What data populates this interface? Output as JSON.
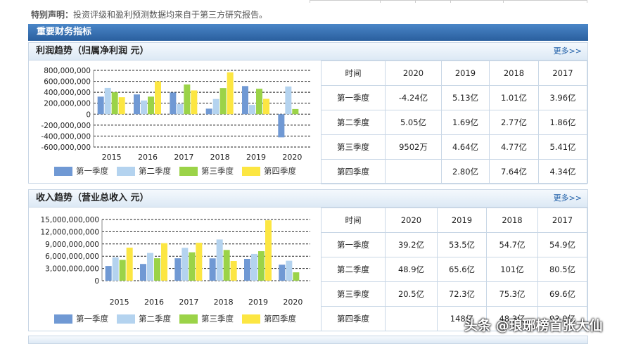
{
  "disclaimer": {
    "label": "特别声明：",
    "text": "投资评级和盈利预测数据均来自于第三方研究报告。"
  },
  "section_title": "重要财务指标",
  "colors": {
    "q1": "#7099d4",
    "q2": "#b4d3ef",
    "q3": "#9bd348",
    "q4": "#fce642"
  },
  "legend": [
    "第一季度",
    "第二季度",
    "第三季度",
    "第四季度"
  ],
  "profit": {
    "title": "利润趋势（归属净利润 元）",
    "more": "更多>>",
    "table": {
      "header": [
        "时间",
        "2020",
        "2019",
        "2018",
        "2017"
      ],
      "rows": [
        [
          "第一季度",
          "-4.24亿",
          "5.13亿",
          "1.01亿",
          "3.96亿"
        ],
        [
          "第二季度",
          "5.05亿",
          "1.69亿",
          "2.77亿",
          "1.86亿"
        ],
        [
          "第三季度",
          "9502万",
          "4.64亿",
          "4.77亿",
          "5.41亿"
        ],
        [
          "第四季度",
          "",
          "2.80亿",
          "7.64亿",
          "4.34亿"
        ]
      ]
    }
  },
  "revenue": {
    "title": "收入趋势（营业总收入 元）",
    "more": "更多>>",
    "table": {
      "header": [
        "时间",
        "2020",
        "2019",
        "2018",
        "2017"
      ],
      "rows": [
        [
          "第一季度",
          "39.2亿",
          "53.5亿",
          "54.7亿",
          "54.9亿"
        ],
        [
          "第二季度",
          "48.9亿",
          "65.6亿",
          "101亿",
          "80.5亿"
        ],
        [
          "第三季度",
          "20.5亿",
          "72.3亿",
          "75.3亿",
          "69.6亿"
        ],
        [
          "第四季度",
          "",
          "148亿",
          "48.3亿",
          "93.0亿"
        ]
      ]
    }
  },
  "watermark": "头条 @琅琊榜首张大仙",
  "chart_data": [
    {
      "type": "bar",
      "categories": [
        "2015",
        "2016",
        "2017",
        "2018",
        "2019",
        "2020"
      ],
      "series": [
        {
          "name": "第一季度",
          "values": [
            320000000,
            360000000,
            396000000,
            101000000,
            513000000,
            -424000000
          ]
        },
        {
          "name": "第二季度",
          "values": [
            480000000,
            250000000,
            186000000,
            277000000,
            169000000,
            505000000
          ]
        },
        {
          "name": "第三季度",
          "values": [
            400000000,
            320000000,
            541000000,
            477000000,
            464000000,
            95020000
          ]
        },
        {
          "name": "第四季度",
          "values": [
            310000000,
            600000000,
            434000000,
            764000000,
            280000000,
            null
          ]
        }
      ],
      "yticks": [
        "800,000,000",
        "600,000,000",
        "400,000,000",
        "200,000,000",
        "0",
        "-200,000,000",
        "-400,000,000",
        "-600,000,000"
      ],
      "ylim": [
        -600000000,
        800000000
      ],
      "grid": true,
      "legend": "bottom"
    },
    {
      "type": "bar",
      "categories": [
        "2015",
        "2016",
        "2017",
        "2018",
        "2019",
        "2020"
      ],
      "series": [
        {
          "name": "第一季度",
          "values": [
            3600000000,
            4100000000,
            5490000000,
            5470000000,
            5350000000,
            3920000000
          ]
        },
        {
          "name": "第二季度",
          "values": [
            5700000000,
            6800000000,
            8050000000,
            10100000000,
            6560000000,
            4890000000
          ]
        },
        {
          "name": "第三季度",
          "values": [
            5100000000,
            5500000000,
            6960000000,
            7530000000,
            7230000000,
            2050000000
          ]
        },
        {
          "name": "第四季度",
          "values": [
            8100000000,
            9200000000,
            9300000000,
            4830000000,
            14800000000,
            null
          ]
        }
      ],
      "yticks": [
        "15,000,000,000",
        "12,000,000,000",
        "9,000,000,000",
        "6,000,000,000",
        "3,000,000,000",
        "0"
      ],
      "ylim": [
        0,
        15000000000
      ],
      "grid": true,
      "legend": "bottom"
    }
  ]
}
